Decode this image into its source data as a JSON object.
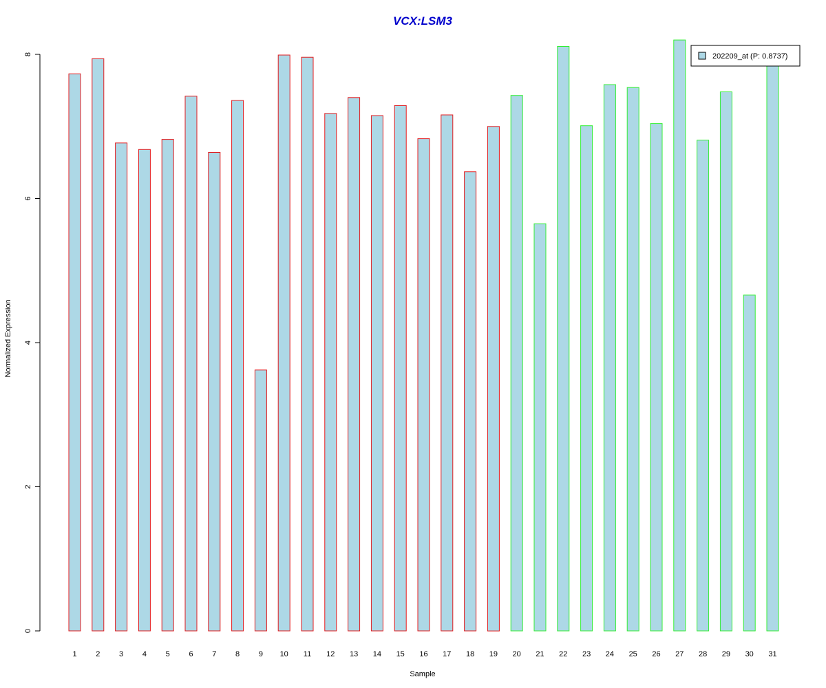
{
  "chart_data": {
    "type": "bar",
    "title": "VCX:LSM3",
    "xlabel": "Sample",
    "ylabel": "Normalized Expression",
    "ylim": [
      0,
      8.2
    ],
    "yticks": [
      0,
      2,
      4,
      6,
      8
    ],
    "categories": [
      "1",
      "2",
      "3",
      "4",
      "5",
      "6",
      "7",
      "8",
      "9",
      "10",
      "11",
      "12",
      "13",
      "14",
      "15",
      "16",
      "17",
      "18",
      "19",
      "20",
      "21",
      "22",
      "23",
      "24",
      "25",
      "26",
      "27",
      "28",
      "29",
      "30",
      "31"
    ],
    "values": [
      7.73,
      7.94,
      6.77,
      6.68,
      6.82,
      7.42,
      6.64,
      7.36,
      3.62,
      7.99,
      7.96,
      7.18,
      7.4,
      7.15,
      7.29,
      6.83,
      7.16,
      6.37,
      7.0,
      7.43,
      5.65,
      8.11,
      7.01,
      7.58,
      7.54,
      7.04,
      8.2,
      6.81,
      7.48,
      4.66,
      7.91
    ],
    "groups": [
      "a",
      "a",
      "a",
      "a",
      "a",
      "a",
      "a",
      "a",
      "a",
      "a",
      "a",
      "a",
      "a",
      "a",
      "a",
      "a",
      "a",
      "a",
      "a",
      "b",
      "b",
      "b",
      "b",
      "b",
      "b",
      "b",
      "b",
      "b",
      "b",
      "b",
      "b"
    ],
    "group_colors": {
      "a": "#e31a1c",
      "b": "#33ee33"
    },
    "bar_fill": "#add8e6",
    "title_color": "#0000cc",
    "grid": false,
    "legend": {
      "placement": "top-right",
      "label": "202209_at (P: 0.8737)",
      "swatch_color": "#add8e6"
    }
  }
}
